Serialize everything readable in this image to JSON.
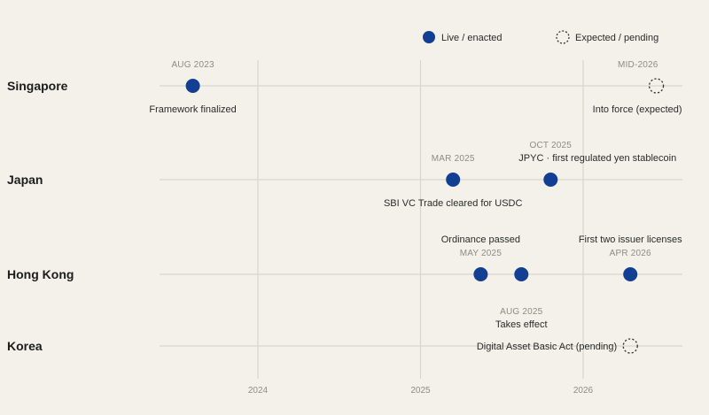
{
  "chart_data": {
    "type": "timeline",
    "x_ticks": [
      {
        "label": "2024",
        "value": 2024.0
      },
      {
        "label": "2025",
        "value": 2025.0
      },
      {
        "label": "2026",
        "value": 2026.0
      }
    ],
    "x_range": [
      2023.4,
      2026.6
    ],
    "legend": {
      "placement": "top-right",
      "items": [
        {
          "key": "live",
          "label": "Live / enacted"
        },
        {
          "key": "expected",
          "label": "Expected / pending"
        }
      ]
    },
    "colors": {
      "live": "#123f93",
      "grid": "#d9d6cd",
      "expected_stroke": "#333333"
    },
    "rows": [
      {
        "label": "Singapore",
        "events": [
          {
            "t": 2023.6,
            "status": "live",
            "date": "AUG 2023",
            "date_pos": "above",
            "text": "Framework finalized",
            "text_pos": "below",
            "text_anchor": "middle"
          },
          {
            "t": 2026.45,
            "status": "expected",
            "date": "MID-2026",
            "date_pos": "above",
            "date_anchor": "end",
            "text": "Into force (expected)",
            "text_pos": "below",
            "text_anchor": "end"
          }
        ]
      },
      {
        "label": "Japan",
        "events": [
          {
            "t": 2025.2,
            "status": "live",
            "date": "MAR 2025",
            "date_pos": "above",
            "text": "SBI VC Trade cleared for USDC",
            "text_pos": "below",
            "text_anchor": "middle"
          },
          {
            "t": 2025.8,
            "status": "live",
            "date": "OCT 2025",
            "date_pos": "above2",
            "text": "JPYC · first regulated yen stablecoin",
            "text_pos": "above",
            "text_anchor": "start"
          }
        ]
      },
      {
        "label": "Hong Kong",
        "events": [
          {
            "t": 2025.37,
            "status": "live",
            "date": "MAY 2025",
            "date_pos": "above",
            "text": "Ordinance passed",
            "text_pos": "above2",
            "text_anchor": "middle"
          },
          {
            "t": 2025.62,
            "status": "live",
            "date": "",
            "text": ""
          },
          {
            "t": 2026.29,
            "status": "live",
            "date": "APR 2026",
            "date_pos": "above",
            "text": "First two issuer licenses",
            "text_pos": "above2",
            "text_anchor": "middle"
          }
        ]
      },
      {
        "label": "Korea",
        "events": [
          {
            "t": 2025.62,
            "status": "annotation",
            "date": "AUG 2025",
            "date_pos": "above2",
            "text": "Takes effect",
            "text_pos": "above",
            "text_anchor": "middle"
          },
          {
            "t": 2026.29,
            "status": "expected",
            "date": "",
            "text": "Digital Asset Basic Act (pending)",
            "text_pos": "left",
            "text_anchor": "end"
          }
        ]
      }
    ]
  }
}
